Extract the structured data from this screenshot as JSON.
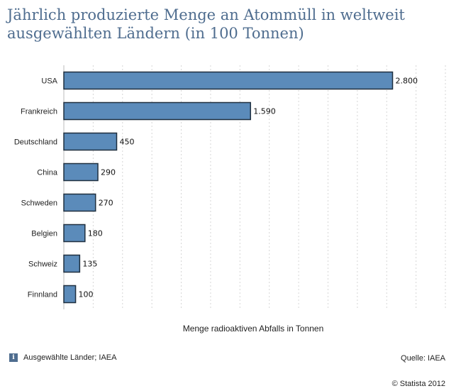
{
  "chart_data": {
    "type": "bar",
    "orientation": "horizontal",
    "title": "Jährlich produzierte Menge an Atommüll in weltweit ausgewählten Ländern (in 100 Tonnen)",
    "xlabel": "Menge radioaktiven Abfalls in Tonnen",
    "ylabel": "",
    "categories": [
      "USA",
      "Frankreich",
      "Deutschland",
      "China",
      "Schweden",
      "Belgien",
      "Schweiz",
      "Finnland"
    ],
    "values": [
      2800,
      1590,
      450,
      290,
      270,
      180,
      135,
      100
    ],
    "value_labels": [
      "2.800",
      "1.590",
      "450",
      "290",
      "270",
      "180",
      "135",
      "100"
    ],
    "xlim": [
      0,
      3250
    ],
    "grid": true,
    "bar_color": "#5b8bba"
  },
  "footer": {
    "info_icon": "info-icon",
    "note": "Ausgewählte Länder; IAEA",
    "source": "Quelle: IAEA",
    "copyright": "© Statista 2012"
  },
  "colors": {
    "title": "#4f6d8f",
    "bar_fill": "#5b8bba",
    "bar_stroke": "#1f2f3f"
  }
}
